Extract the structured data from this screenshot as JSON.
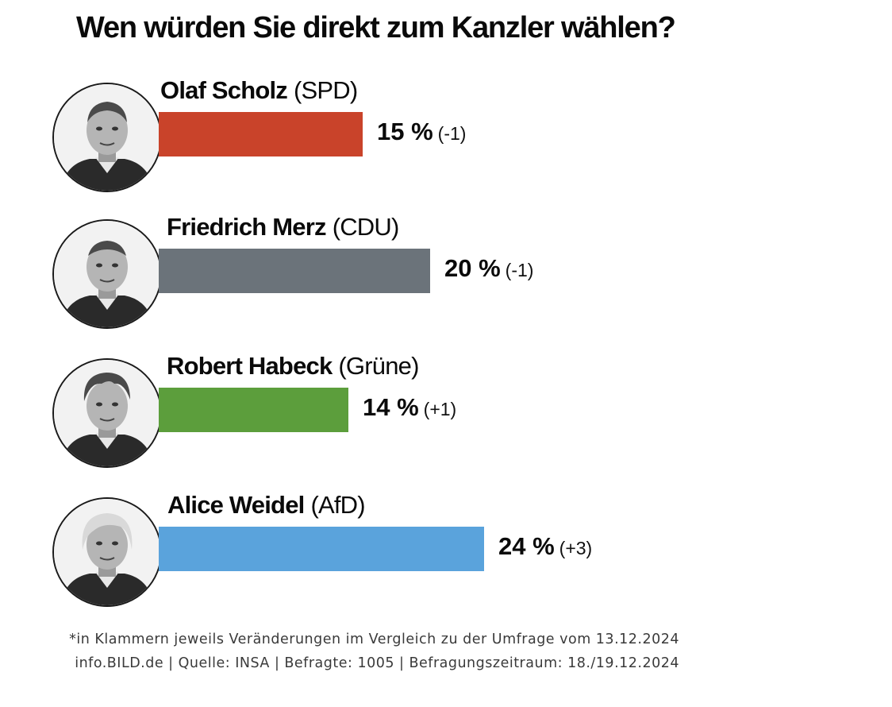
{
  "chart_data": {
    "type": "bar",
    "orientation": "horizontal",
    "title": "Wen würden Sie direkt zum Kanzler wählen?",
    "unit": "%",
    "series": [
      {
        "name": "Olaf Scholz",
        "party": "(SPD)",
        "value": 15,
        "value_label": "15 %",
        "change_label": "(-1)",
        "color": "#c9432a",
        "photo": "portrait-olaf-scholz"
      },
      {
        "name": "Friedrich Merz",
        "party": "(CDU)",
        "value": 20,
        "value_label": "20 %",
        "change_label": "(-1)",
        "color": "#6b737a",
        "photo": "portrait-friedrich-merz"
      },
      {
        "name": "Robert Habeck",
        "party": "(Grüne)",
        "value": 14,
        "value_label": "14 %",
        "change_label": "(+1)",
        "color": "#5c9e3c",
        "photo": "portrait-robert-habeck"
      },
      {
        "name": "Alice Weidel",
        "party": "(AfD)",
        "value": 24,
        "value_label": "24 %",
        "change_label": "(+3)",
        "color": "#5aa3dc",
        "photo": "portrait-alice-weidel"
      }
    ],
    "xlim": [
      0,
      24
    ],
    "grid": false,
    "legend": "none"
  },
  "footnote": {
    "line1": "*in Klammern jeweils Veränderungen im Vergleich zu der Umfrage vom 13.12.2024",
    "line2": "info.BILD.de | Quelle: INSA | Befragte: 1005 | Befragungszeitraum: 18./19.12.2024"
  }
}
